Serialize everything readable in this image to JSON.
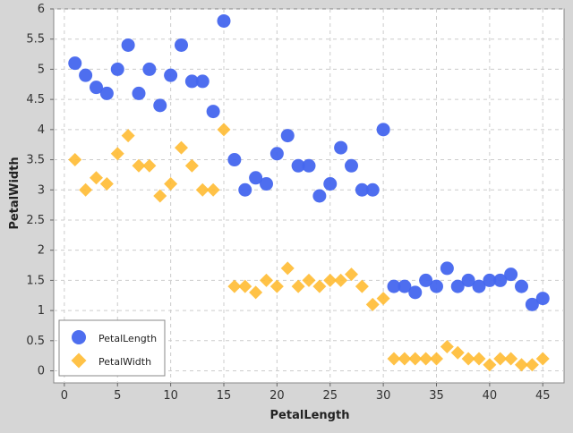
{
  "chart_data": {
    "type": "scatter",
    "xlabel": "PetalLength",
    "ylabel": "PetalWidth",
    "xlim": [
      -1,
      47
    ],
    "ylim": [
      -0.2,
      6
    ],
    "xticks": [
      0,
      5,
      10,
      15,
      20,
      25,
      30,
      35,
      40,
      45
    ],
    "xtick_labels": [
      "0",
      "5",
      "10",
      "15",
      "20",
      "25",
      "30",
      "35",
      "40",
      "45"
    ],
    "yticks": [
      0,
      0.5,
      1,
      1.5,
      2,
      2.5,
      3,
      3.5,
      4,
      4.5,
      5,
      5.5,
      6
    ],
    "ytick_labels": [
      "0",
      "0.5",
      "1",
      "1.5",
      "2",
      "2.5",
      "3",
      "3.5",
      "4",
      "4.5",
      "5",
      "5.5",
      "6"
    ],
    "grid": true,
    "legend_position": "bottom-left",
    "series": [
      {
        "name": "PetalLength",
        "marker": "circle",
        "color": "#4466ee",
        "x": [
          1,
          2,
          3,
          4,
          5,
          6,
          7,
          8,
          9,
          10,
          11,
          12,
          13,
          14,
          15,
          16,
          17,
          18,
          19,
          20,
          21,
          22,
          23,
          24,
          25,
          26,
          27,
          28,
          29,
          30,
          31,
          32,
          33,
          34,
          35,
          36,
          37,
          38,
          39,
          40,
          41,
          42,
          43,
          44,
          45
        ],
        "y": [
          5.1,
          4.9,
          4.7,
          4.6,
          5.0,
          5.4,
          4.6,
          5.0,
          4.4,
          4.9,
          5.4,
          4.8,
          4.8,
          4.3,
          5.8,
          3.5,
          3.0,
          3.2,
          3.1,
          3.6,
          3.9,
          3.4,
          3.4,
          2.9,
          3.1,
          3.7,
          3.4,
          3.0,
          3.0,
          4.0,
          1.4,
          1.4,
          1.3,
          1.5,
          1.4,
          1.7,
          1.4,
          1.5,
          1.4,
          1.5,
          1.5,
          1.6,
          1.4,
          1.1,
          1.2
        ]
      },
      {
        "name": "PetalWidth",
        "marker": "diamond",
        "color": "#ffbb33",
        "x": [
          1,
          2,
          3,
          4,
          5,
          6,
          7,
          8,
          9,
          10,
          11,
          12,
          13,
          14,
          15,
          16,
          17,
          18,
          19,
          20,
          21,
          22,
          23,
          24,
          25,
          26,
          27,
          28,
          29,
          30,
          31,
          32,
          33,
          34,
          35,
          36,
          37,
          38,
          39,
          40,
          41,
          42,
          43,
          44,
          45
        ],
        "y": [
          3.5,
          3.0,
          3.2,
          3.1,
          3.6,
          3.9,
          3.4,
          3.4,
          2.9,
          3.1,
          3.7,
          3.4,
          3.0,
          3.0,
          4.0,
          1.4,
          1.4,
          1.3,
          1.5,
          1.4,
          1.7,
          1.4,
          1.5,
          1.4,
          1.5,
          1.5,
          1.6,
          1.4,
          1.1,
          1.2,
          0.2,
          0.2,
          0.2,
          0.2,
          0.2,
          0.4,
          0.3,
          0.2,
          0.2,
          0.1,
          0.2,
          0.2,
          0.1,
          0.1,
          0.2
        ]
      }
    ]
  }
}
